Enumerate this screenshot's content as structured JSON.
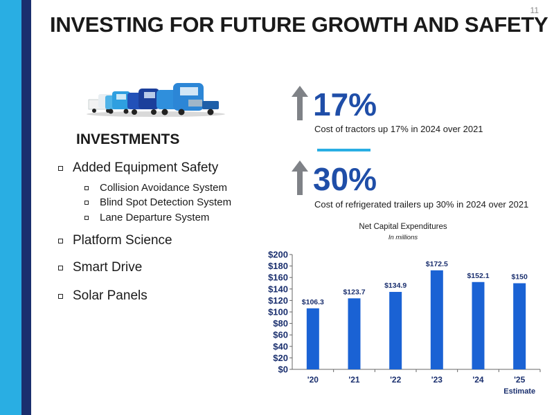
{
  "page_number": "11",
  "title": "INVESTING FOR FUTURE GROWTH AND SAFETY",
  "investments": {
    "heading": "INVESTMENTS",
    "items": [
      {
        "label": "Added Equipment Safety",
        "sub_items": [
          "Collision Avoidance System",
          "Blind Spot Detection System",
          "Lane Departure System"
        ]
      },
      {
        "label": "Platform Science",
        "sub_items": []
      },
      {
        "label": "Smart Drive",
        "sub_items": []
      },
      {
        "label": "Solar Panels",
        "sub_items": []
      }
    ]
  },
  "stats": [
    {
      "value": "17%",
      "description": "Cost of tractors up 17% in 2024 over 2021",
      "icon": "up-arrow-icon"
    },
    {
      "value": "30%",
      "description": "Cost of refrigerated trailers up 30% in 2024 over 2021",
      "icon": "up-arrow-icon"
    }
  ],
  "colors": {
    "accent_blue": "#1f4ea8",
    "bar_blue": "#1a62d4",
    "stripe_light": "#29aee3",
    "stripe_dark": "#1a2f6e",
    "divider": "#29aee3",
    "arrow_gray": "#7f8287"
  },
  "chart_data": {
    "type": "bar",
    "title": "Net Capital Expenditures",
    "subtitle": "In millions",
    "categories": [
      "'20",
      "'21",
      "'22",
      "'23",
      "'24",
      "'25"
    ],
    "category_sublabels": [
      "",
      "",
      "",
      "",
      "",
      "Estimate"
    ],
    "values": [
      106.3,
      123.7,
      134.9,
      172.5,
      152.1,
      150
    ],
    "data_labels": [
      "$106.3",
      "$123.7",
      "$134.9",
      "$172.5",
      "$152.1",
      "$150"
    ],
    "ylim": [
      0,
      200
    ],
    "y_ticks": [
      0,
      20,
      40,
      60,
      80,
      100,
      120,
      140,
      160,
      180,
      200
    ],
    "y_tick_labels": [
      "$0",
      "$20",
      "$40",
      "$60",
      "$80",
      "$100",
      "$120",
      "$140",
      "$160",
      "$180",
      "$200"
    ],
    "xlabel": "",
    "ylabel": "",
    "grid": false,
    "legend": "none"
  }
}
